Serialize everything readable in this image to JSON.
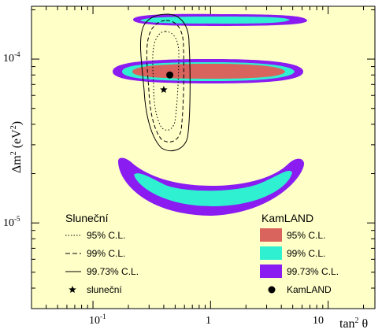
{
  "chart_data": {
    "type": "contour",
    "xlabel_main": "tan",
    "xlabel_sup": "2",
    "xlabel_tail": " θ",
    "ylabel_main": "Δm",
    "ylabel_sup1": "2",
    "ylabel_mid": " (eV",
    "ylabel_sup2": "2",
    "ylabel_end": ")",
    "x_scale": "log",
    "y_scale": "log",
    "xlim": [
      0.03,
      25
    ],
    "ylim": [
      3e-06,
      0.00021
    ],
    "x_ticks": [
      {
        "value": 0.1,
        "base": "10",
        "exp": "-1"
      },
      {
        "value": 1,
        "label": "1"
      },
      {
        "value": 10,
        "label": "10"
      }
    ],
    "y_ticks": [
      {
        "value": 1e-05,
        "base": "10",
        "exp": "-5"
      },
      {
        "value": 0.0001,
        "base": "10",
        "exp": "-4"
      }
    ],
    "background": "#ffffc8",
    "solar": {
      "legend_title": "Sluneční",
      "contours": [
        {
          "name": "95% C.L.",
          "style": "dotted"
        },
        {
          "name": "99% C.L.",
          "style": "dashed"
        },
        {
          "name": "99.73% C.L.",
          "style": "solid"
        }
      ],
      "best_fit": {
        "name": "sluneční",
        "x": 0.4,
        "y": 6.5e-05,
        "marker": "star"
      }
    },
    "kamland": {
      "legend_title": "KamLAND",
      "regions": [
        {
          "name": "95% C.L.",
          "color": "#d9645e"
        },
        {
          "name": "99% C.L.",
          "color": "#2ff0d1"
        },
        {
          "name": "99.73% C.L.",
          "color": "#8a1cf2"
        }
      ],
      "best_fit": {
        "name": "KamLAND",
        "x": 0.45,
        "y": 8e-05,
        "marker": "dot"
      }
    }
  }
}
